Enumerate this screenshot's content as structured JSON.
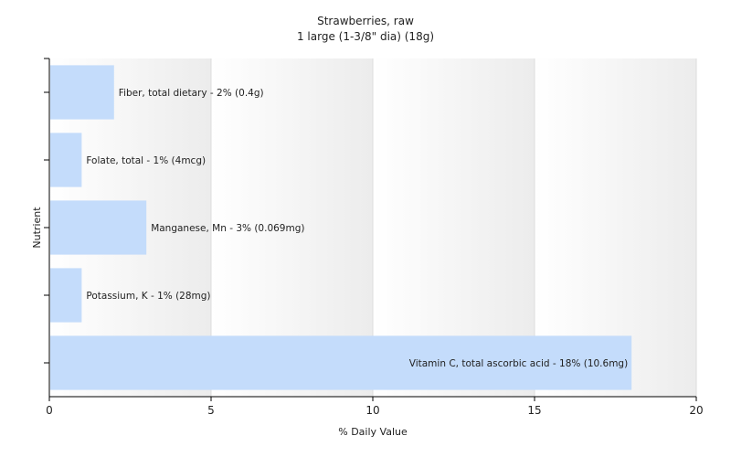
{
  "chart_data": {
    "type": "bar",
    "orientation": "horizontal",
    "title": "Strawberries, raw",
    "subtitle": "1 large (1-3/8\" dia) (18g)",
    "xlabel": "% Daily Value",
    "ylabel": "Nutrient",
    "xlim": [
      0,
      20
    ],
    "xticks": [
      0,
      5,
      10,
      15,
      20
    ],
    "grid": true,
    "bar_color": "#c4dcfb",
    "categories": [
      "Fiber, total dietary",
      "Folate, total",
      "Manganese, Mn",
      "Potassium, K",
      "Vitamin C, total ascorbic acid"
    ],
    "values": [
      2,
      1,
      3,
      1,
      18
    ],
    "data_labels": [
      "Fiber, total dietary - 2% (0.4g)",
      "Folate, total - 1% (4mcg)",
      "Manganese, Mn - 3% (0.069mg)",
      "Potassium, K - 1% (28mg)",
      "Vitamin C, total ascorbic acid - 18% (10.6mg)"
    ]
  }
}
